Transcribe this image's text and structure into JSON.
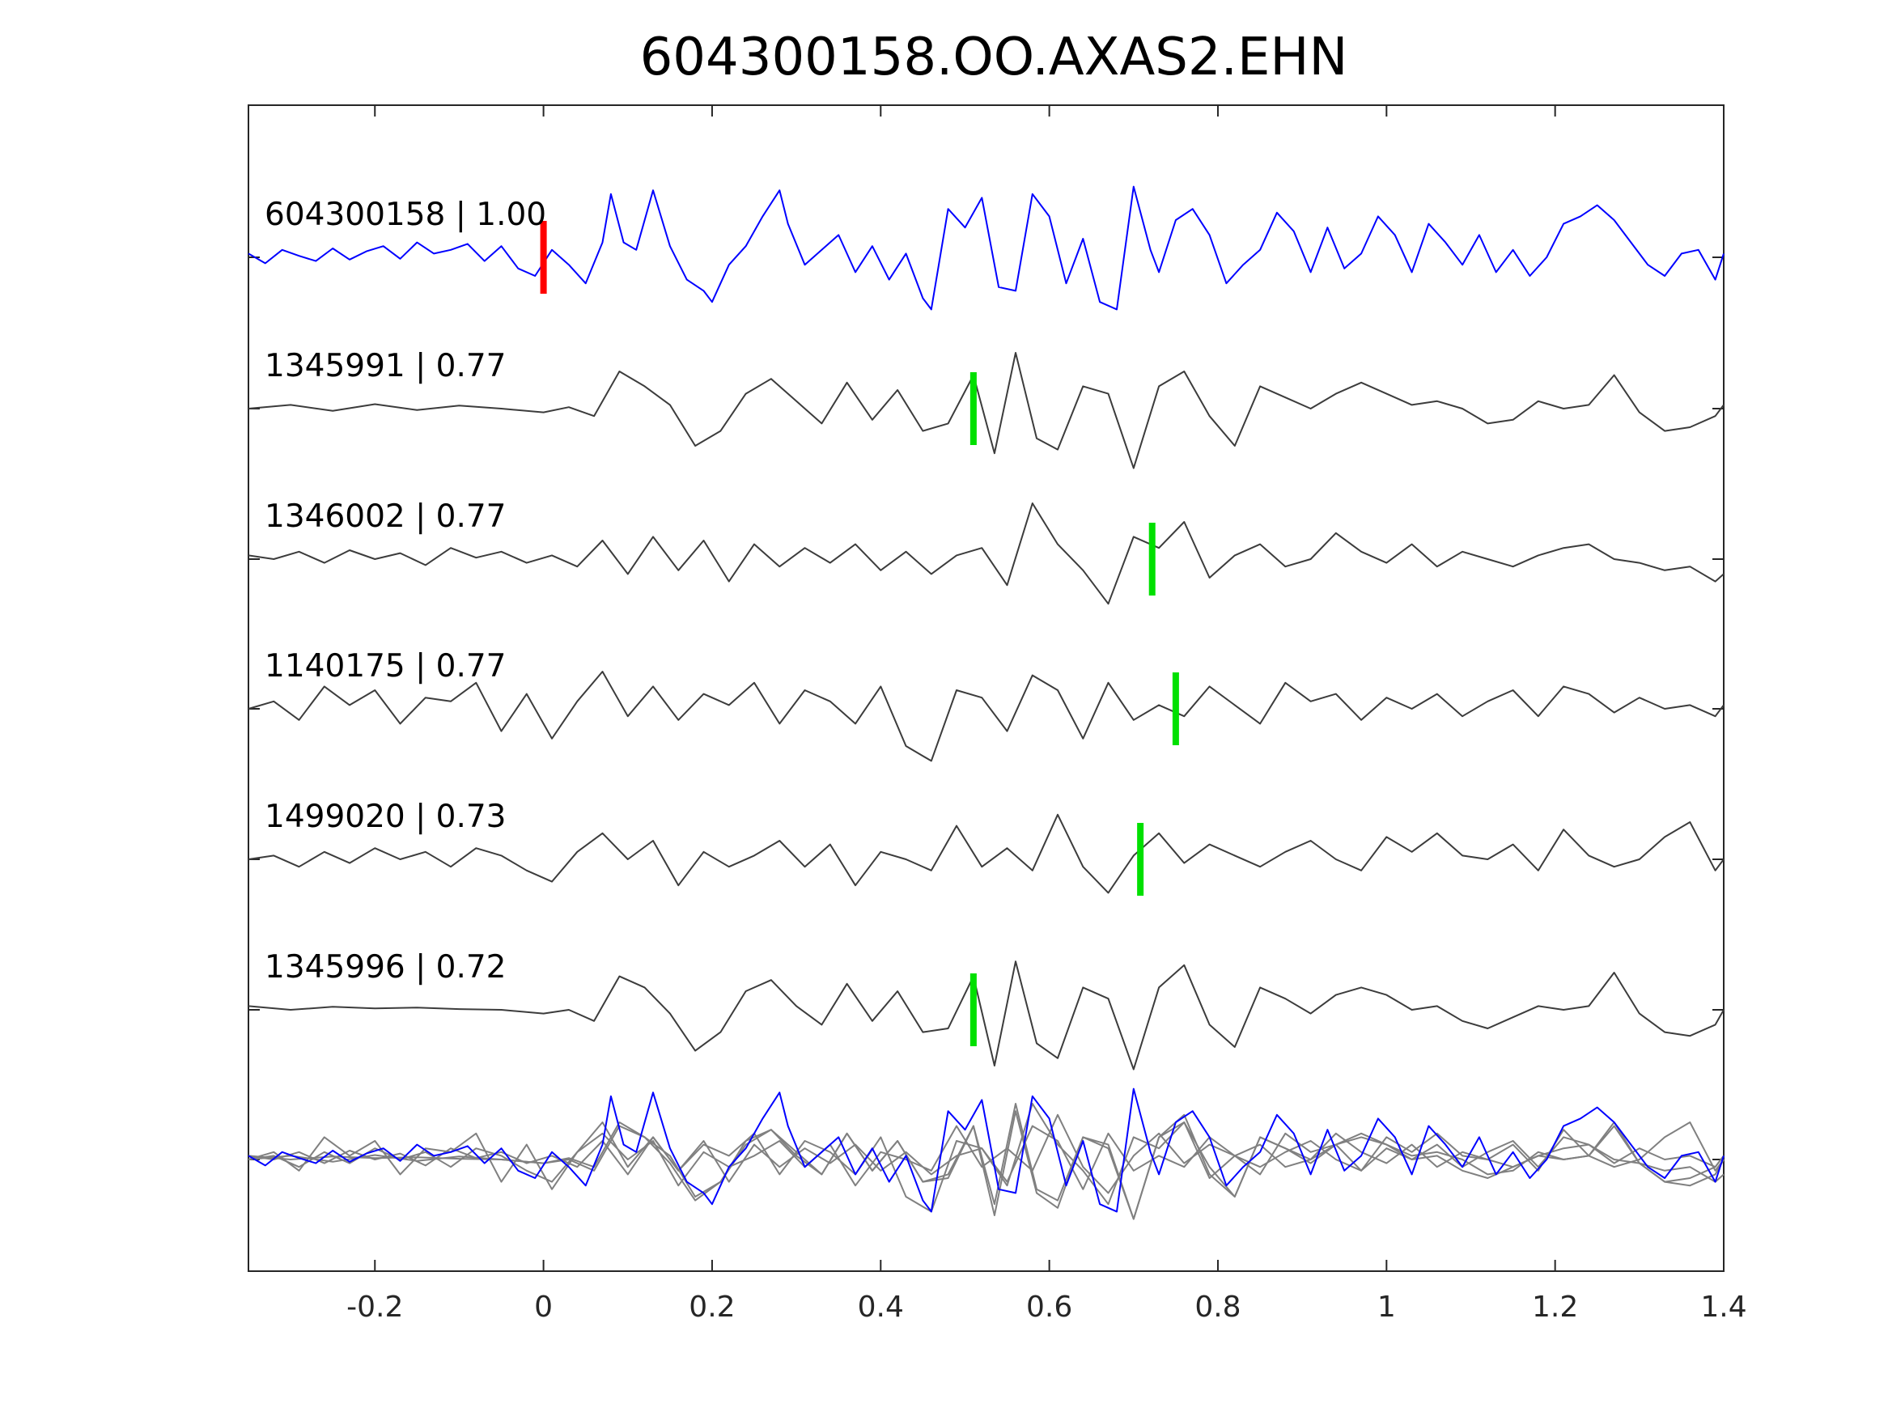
{
  "chart_data": {
    "type": "line",
    "title": "604300158.OO.AXAS2.EHN",
    "xlabel": "",
    "ylabel": "",
    "xlim": [
      -0.35,
      1.4
    ],
    "xticks": [
      -0.2,
      0,
      0.2,
      0.4,
      0.6,
      0.8,
      1,
      1.2,
      1.4
    ],
    "xtick_labels": [
      "-0.2",
      "0",
      "0.2",
      "0.4",
      "0.6",
      "0.8",
      "1",
      "1.2",
      "1.4"
    ],
    "grid": false,
    "template_color": "#0000ff",
    "match_color": "#3c3c3c",
    "overlay_match_color": "#808080",
    "template_pick_color": "#ff0000",
    "match_pick_color": "#00e000",
    "traces": [
      {
        "label": "604300158 | 1.00",
        "pick": 0.0,
        "role": "template"
      },
      {
        "label": "1345991 | 0.77",
        "pick": 0.51,
        "role": "match"
      },
      {
        "label": "1346002 | 0.77",
        "pick": 0.722,
        "role": "match"
      },
      {
        "label": "1140175 | 0.77",
        "pick": 0.75,
        "role": "match"
      },
      {
        "label": "1499020 | 0.73",
        "pick": 0.708,
        "role": "match"
      },
      {
        "label": "1345996 | 0.72",
        "pick": 0.51,
        "role": "match"
      }
    ],
    "series": [
      {
        "x": [
          -0.35,
          -0.33,
          -0.31,
          -0.29,
          -0.27,
          -0.25,
          -0.23,
          -0.21,
          -0.19,
          -0.17,
          -0.15,
          -0.13,
          -0.11,
          -0.09,
          -0.07,
          -0.05,
          -0.03,
          -0.01,
          0.01,
          0.03,
          0.05,
          0.07,
          0.08,
          0.095,
          0.11,
          0.13,
          0.15,
          0.17,
          0.19,
          0.2,
          0.22,
          0.24,
          0.26,
          0.28,
          0.29,
          0.31,
          0.33,
          0.35,
          0.37,
          0.39,
          0.41,
          0.43,
          0.45,
          0.46,
          0.48,
          0.5,
          0.52,
          0.54,
          0.56,
          0.58,
          0.6,
          0.62,
          0.64,
          0.66,
          0.68,
          0.7,
          0.72,
          0.73,
          0.75,
          0.77,
          0.79,
          0.81,
          0.83,
          0.85,
          0.87,
          0.89,
          0.91,
          0.93,
          0.95,
          0.97,
          0.99,
          1.01,
          1.03,
          1.05,
          1.07,
          1.09,
          1.11,
          1.13,
          1.15,
          1.17,
          1.19,
          1.21,
          1.23,
          1.25,
          1.27,
          1.29,
          1.31,
          1.33,
          1.35,
          1.37,
          1.39,
          1.4
        ],
        "y": [
          0.05,
          -0.08,
          0.1,
          0.02,
          -0.05,
          0.12,
          -0.03,
          0.08,
          0.15,
          -0.02,
          0.2,
          0.05,
          0.1,
          0.18,
          -0.05,
          0.15,
          -0.15,
          -0.25,
          0.1,
          -0.1,
          -0.35,
          0.2,
          0.85,
          0.2,
          0.1,
          0.9,
          0.15,
          -0.3,
          -0.45,
          -0.6,
          -0.1,
          0.15,
          0.55,
          0.9,
          0.45,
          -0.1,
          0.1,
          0.3,
          -0.2,
          0.15,
          -0.3,
          0.05,
          -0.55,
          -0.7,
          0.65,
          0.4,
          0.8,
          -0.4,
          -0.45,
          0.85,
          0.55,
          -0.35,
          0.25,
          -0.6,
          -0.7,
          0.95,
          0.1,
          -0.2,
          0.5,
          0.65,
          0.3,
          -0.35,
          -0.1,
          0.1,
          0.6,
          0.35,
          -0.2,
          0.4,
          -0.15,
          0.05,
          0.55,
          0.3,
          -0.2,
          0.45,
          0.2,
          -0.1,
          0.3,
          -0.2,
          0.1,
          -0.25,
          0.0,
          0.45,
          0.55,
          0.7,
          0.5,
          0.2,
          -0.1,
          -0.25,
          0.05,
          0.1,
          -0.3,
          0.05
        ]
      },
      {
        "x": [
          -0.35,
          -0.3,
          -0.25,
          -0.2,
          -0.15,
          -0.1,
          -0.05,
          0.0,
          0.03,
          0.06,
          0.09,
          0.12,
          0.15,
          0.18,
          0.21,
          0.24,
          0.27,
          0.3,
          0.33,
          0.36,
          0.39,
          0.42,
          0.45,
          0.48,
          0.51,
          0.535,
          0.56,
          0.585,
          0.61,
          0.64,
          0.67,
          0.7,
          0.73,
          0.76,
          0.79,
          0.82,
          0.85,
          0.88,
          0.91,
          0.94,
          0.97,
          1.0,
          1.03,
          1.06,
          1.09,
          1.12,
          1.15,
          1.18,
          1.21,
          1.24,
          1.27,
          1.3,
          1.33,
          1.36,
          1.39,
          1.4
        ],
        "y": [
          0.0,
          0.05,
          -0.03,
          0.06,
          -0.02,
          0.04,
          0.0,
          -0.05,
          0.02,
          -0.1,
          0.5,
          0.3,
          0.05,
          -0.5,
          -0.3,
          0.2,
          0.4,
          0.1,
          -0.2,
          0.35,
          -0.15,
          0.25,
          -0.3,
          -0.2,
          0.45,
          -0.6,
          0.75,
          -0.4,
          -0.55,
          0.3,
          0.2,
          -0.8,
          0.3,
          0.5,
          -0.1,
          -0.5,
          0.3,
          0.15,
          0.0,
          0.2,
          0.35,
          0.2,
          0.05,
          0.1,
          0.0,
          -0.2,
          -0.15,
          0.1,
          0.0,
          0.05,
          0.45,
          -0.05,
          -0.3,
          -0.25,
          -0.1,
          0.05
        ]
      },
      {
        "x": [
          -0.35,
          -0.32,
          -0.29,
          -0.26,
          -0.23,
          -0.2,
          -0.17,
          -0.14,
          -0.11,
          -0.08,
          -0.05,
          -0.02,
          0.01,
          0.04,
          0.07,
          0.1,
          0.13,
          0.16,
          0.19,
          0.22,
          0.25,
          0.28,
          0.31,
          0.34,
          0.37,
          0.4,
          0.43,
          0.46,
          0.49,
          0.52,
          0.55,
          0.58,
          0.61,
          0.64,
          0.67,
          0.7,
          0.73,
          0.76,
          0.79,
          0.82,
          0.85,
          0.88,
          0.91,
          0.94,
          0.97,
          1.0,
          1.03,
          1.06,
          1.09,
          1.12,
          1.15,
          1.18,
          1.21,
          1.24,
          1.27,
          1.3,
          1.33,
          1.36,
          1.39,
          1.4
        ],
        "y": [
          0.05,
          0.0,
          0.1,
          -0.05,
          0.12,
          0.0,
          0.08,
          -0.08,
          0.15,
          0.02,
          0.1,
          -0.05,
          0.05,
          -0.1,
          0.25,
          -0.2,
          0.3,
          -0.15,
          0.25,
          -0.3,
          0.2,
          -0.1,
          0.15,
          -0.05,
          0.2,
          -0.15,
          0.1,
          -0.2,
          0.05,
          0.15,
          -0.35,
          0.75,
          0.2,
          -0.15,
          -0.6,
          0.3,
          0.15,
          0.5,
          -0.25,
          0.05,
          0.2,
          -0.1,
          0.0,
          0.35,
          0.1,
          -0.05,
          0.2,
          -0.1,
          0.1,
          0.0,
          -0.1,
          0.05,
          0.15,
          0.2,
          0.0,
          -0.05,
          -0.15,
          -0.1,
          -0.3,
          -0.2
        ]
      },
      {
        "x": [
          -0.35,
          -0.32,
          -0.29,
          -0.26,
          -0.23,
          -0.2,
          -0.17,
          -0.14,
          -0.11,
          -0.08,
          -0.05,
          -0.02,
          0.01,
          0.04,
          0.07,
          0.1,
          0.13,
          0.16,
          0.19,
          0.22,
          0.25,
          0.28,
          0.31,
          0.34,
          0.37,
          0.4,
          0.43,
          0.46,
          0.49,
          0.52,
          0.55,
          0.58,
          0.61,
          0.64,
          0.67,
          0.7,
          0.73,
          0.76,
          0.79,
          0.82,
          0.85,
          0.88,
          0.91,
          0.94,
          0.97,
          1.0,
          1.03,
          1.06,
          1.09,
          1.12,
          1.15,
          1.18,
          1.21,
          1.24,
          1.27,
          1.3,
          1.33,
          1.36,
          1.39,
          1.4
        ],
        "y": [
          0.0,
          0.1,
          -0.15,
          0.3,
          0.05,
          0.25,
          -0.2,
          0.15,
          0.1,
          0.35,
          -0.3,
          0.2,
          -0.4,
          0.1,
          0.5,
          -0.1,
          0.3,
          -0.15,
          0.2,
          0.05,
          0.35,
          -0.2,
          0.25,
          0.1,
          -0.2,
          0.3,
          -0.5,
          -0.7,
          0.25,
          0.15,
          -0.3,
          0.45,
          0.25,
          -0.4,
          0.35,
          -0.15,
          0.05,
          -0.1,
          0.3,
          0.05,
          -0.2,
          0.35,
          0.1,
          0.2,
          -0.15,
          0.15,
          0.0,
          0.2,
          -0.1,
          0.1,
          0.25,
          -0.1,
          0.3,
          0.2,
          -0.05,
          0.15,
          0.0,
          0.05,
          -0.1,
          0.05
        ]
      },
      {
        "x": [
          -0.35,
          -0.32,
          -0.29,
          -0.26,
          -0.23,
          -0.2,
          -0.17,
          -0.14,
          -0.11,
          -0.08,
          -0.05,
          -0.02,
          0.01,
          0.04,
          0.07,
          0.1,
          0.13,
          0.16,
          0.19,
          0.22,
          0.25,
          0.28,
          0.31,
          0.34,
          0.37,
          0.4,
          0.43,
          0.46,
          0.49,
          0.52,
          0.55,
          0.58,
          0.61,
          0.64,
          0.67,
          0.7,
          0.73,
          0.76,
          0.79,
          0.82,
          0.85,
          0.88,
          0.91,
          0.94,
          0.97,
          1.0,
          1.03,
          1.06,
          1.09,
          1.12,
          1.15,
          1.18,
          1.21,
          1.24,
          1.27,
          1.3,
          1.33,
          1.36,
          1.39,
          1.4
        ],
        "y": [
          0.0,
          0.05,
          -0.1,
          0.1,
          -0.05,
          0.15,
          0.0,
          0.1,
          -0.1,
          0.15,
          0.05,
          -0.15,
          -0.3,
          0.1,
          0.35,
          0.0,
          0.25,
          -0.35,
          0.1,
          -0.1,
          0.05,
          0.25,
          -0.1,
          0.2,
          -0.35,
          0.1,
          0.0,
          -0.15,
          0.45,
          -0.1,
          0.15,
          -0.15,
          0.6,
          -0.1,
          -0.45,
          0.05,
          0.35,
          -0.05,
          0.2,
          0.05,
          -0.1,
          0.1,
          0.25,
          0.0,
          -0.15,
          0.3,
          0.1,
          0.35,
          0.05,
          0.0,
          0.2,
          -0.15,
          0.4,
          0.05,
          -0.1,
          0.0,
          0.3,
          0.5,
          -0.15,
          0.0
        ]
      },
      {
        "x": [
          -0.35,
          -0.3,
          -0.25,
          -0.2,
          -0.15,
          -0.1,
          -0.05,
          0.0,
          0.03,
          0.06,
          0.09,
          0.12,
          0.15,
          0.18,
          0.21,
          0.24,
          0.27,
          0.3,
          0.33,
          0.36,
          0.39,
          0.42,
          0.45,
          0.48,
          0.51,
          0.535,
          0.56,
          0.585,
          0.61,
          0.64,
          0.67,
          0.7,
          0.73,
          0.76,
          0.79,
          0.82,
          0.85,
          0.88,
          0.91,
          0.94,
          0.97,
          1.0,
          1.03,
          1.06,
          1.09,
          1.12,
          1.15,
          1.18,
          1.21,
          1.24,
          1.27,
          1.3,
          1.33,
          1.36,
          1.39,
          1.4
        ],
        "y": [
          0.05,
          0.0,
          0.04,
          0.02,
          0.03,
          0.01,
          0.0,
          -0.05,
          0.0,
          -0.15,
          0.45,
          0.3,
          -0.05,
          -0.55,
          -0.3,
          0.25,
          0.4,
          0.05,
          -0.2,
          0.35,
          -0.15,
          0.25,
          -0.3,
          -0.25,
          0.45,
          -0.75,
          0.65,
          -0.45,
          -0.65,
          0.3,
          0.15,
          -0.8,
          0.3,
          0.6,
          -0.2,
          -0.5,
          0.3,
          0.15,
          -0.05,
          0.2,
          0.3,
          0.2,
          0.0,
          0.05,
          -0.15,
          -0.25,
          -0.1,
          0.05,
          0.0,
          0.05,
          0.5,
          -0.05,
          -0.3,
          -0.35,
          -0.2,
          0.0
        ]
      }
    ]
  }
}
